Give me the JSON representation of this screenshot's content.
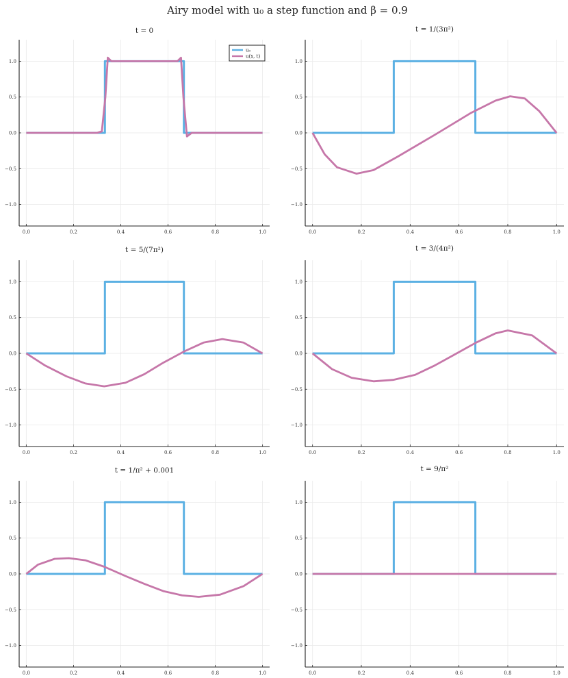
{
  "figure": {
    "title": "Airy model with u₀ a step function and β =  0.9"
  },
  "colors": {
    "u0": "#5bb0e3",
    "u": "#c677a9",
    "grid": "#e9e9e9",
    "axis": "#222222"
  },
  "legend": {
    "entries": [
      "u₀",
      "u(x, t)"
    ]
  },
  "chart_data": [
    {
      "type": "line",
      "title": "t = 0",
      "xticks": [
        0.0,
        0.2,
        0.4,
        0.6,
        0.8,
        1.0
      ],
      "yticks": [
        -1.0,
        -0.5,
        0.0,
        0.5,
        1.0
      ],
      "xtick_labels": [
        "0.0",
        "0.2",
        "0.4",
        "0.6",
        "0.8",
        "1.0"
      ],
      "ytick_labels": [
        "−1.0",
        "−0.5",
        "0.0",
        "0.5",
        "1.0"
      ],
      "xlim": [
        -0.03,
        1.03
      ],
      "ylim": [
        -1.3,
        1.3
      ],
      "grid": true,
      "legend": "top-right",
      "series": [
        {
          "name": "u₀",
          "x": [
            0,
            0.333,
            0.333,
            0.667,
            0.667,
            1.0
          ],
          "y": [
            0,
            0,
            1,
            1,
            0,
            0
          ]
        },
        {
          "name": "u(x, t)",
          "x": [
            0.0,
            0.3,
            0.32,
            0.335,
            0.345,
            0.36,
            0.5,
            0.64,
            0.655,
            0.665,
            0.68,
            0.7,
            1.0
          ],
          "y": [
            0.0,
            0.0,
            0.02,
            0.5,
            1.05,
            1.0,
            1.0,
            1.0,
            1.05,
            0.5,
            -0.05,
            0.0,
            0.0
          ]
        }
      ]
    },
    {
      "type": "line",
      "title": "t = 1/(3π²)",
      "xticks": [
        0.0,
        0.2,
        0.4,
        0.6,
        0.8,
        1.0
      ],
      "yticks": [
        -1.0,
        -0.5,
        0.0,
        0.5,
        1.0
      ],
      "xtick_labels": [
        "0.0",
        "0.2",
        "0.4",
        "0.6",
        "0.8",
        "1.0"
      ],
      "ytick_labels": [
        "−1.0",
        "−0.5",
        "0.0",
        "0.5",
        "1.0"
      ],
      "xlim": [
        -0.03,
        1.03
      ],
      "ylim": [
        -1.3,
        1.3
      ],
      "grid": true,
      "series": [
        {
          "name": "u₀",
          "x": [
            0,
            0.333,
            0.333,
            0.667,
            0.667,
            1.0
          ],
          "y": [
            0,
            0,
            1,
            1,
            0,
            0
          ]
        },
        {
          "name": "u(x, t)",
          "x": [
            0.0,
            0.05,
            0.1,
            0.18,
            0.25,
            0.35,
            0.5,
            0.65,
            0.75,
            0.81,
            0.87,
            0.93,
            1.0
          ],
          "y": [
            0.0,
            -0.3,
            -0.48,
            -0.57,
            -0.52,
            -0.33,
            -0.03,
            0.28,
            0.45,
            0.51,
            0.48,
            0.3,
            0.0
          ]
        }
      ]
    },
    {
      "type": "line",
      "title": "t = 5/(7π²)",
      "xticks": [
        0.0,
        0.2,
        0.4,
        0.6,
        0.8,
        1.0
      ],
      "yticks": [
        -1.0,
        -0.5,
        0.0,
        0.5,
        1.0
      ],
      "xtick_labels": [
        "0.0",
        "0.2",
        "0.4",
        "0.6",
        "0.8",
        "1.0"
      ],
      "ytick_labels": [
        "−1.0",
        "−0.5",
        "0.0",
        "0.5",
        "1.0"
      ],
      "xlim": [
        -0.03,
        1.03
      ],
      "ylim": [
        -1.3,
        1.3
      ],
      "grid": true,
      "series": [
        {
          "name": "u₀",
          "x": [
            0,
            0.333,
            0.333,
            0.667,
            0.667,
            1.0
          ],
          "y": [
            0,
            0,
            1,
            1,
            0,
            0
          ]
        },
        {
          "name": "u(x, t)",
          "x": [
            0.0,
            0.08,
            0.17,
            0.25,
            0.33,
            0.42,
            0.5,
            0.58,
            0.67,
            0.75,
            0.83,
            0.92,
            1.0
          ],
          "y": [
            0.0,
            -0.17,
            -0.32,
            -0.42,
            -0.46,
            -0.41,
            -0.29,
            -0.13,
            0.03,
            0.15,
            0.2,
            0.15,
            0.0
          ]
        }
      ]
    },
    {
      "type": "line",
      "title": "t = 3/(4π²)",
      "xticks": [
        0.0,
        0.2,
        0.4,
        0.6,
        0.8,
        1.0
      ],
      "yticks": [
        -1.0,
        -0.5,
        0.0,
        0.5,
        1.0
      ],
      "xtick_labels": [
        "0.0",
        "0.2",
        "0.4",
        "0.6",
        "0.8",
        "1.0"
      ],
      "ytick_labels": [
        "−1.0",
        "−0.5",
        "0.0",
        "0.5",
        "1.0"
      ],
      "xlim": [
        -0.03,
        1.03
      ],
      "ylim": [
        -1.3,
        1.3
      ],
      "grid": true,
      "series": [
        {
          "name": "u₀",
          "x": [
            0,
            0.333,
            0.333,
            0.667,
            0.667,
            1.0
          ],
          "y": [
            0,
            0,
            1,
            1,
            0,
            0
          ]
        },
        {
          "name": "u(x, t)",
          "x": [
            0.0,
            0.08,
            0.16,
            0.25,
            0.33,
            0.42,
            0.5,
            0.58,
            0.67,
            0.75,
            0.8,
            0.9,
            1.0
          ],
          "y": [
            0.0,
            -0.22,
            -0.34,
            -0.39,
            -0.37,
            -0.3,
            -0.17,
            -0.02,
            0.15,
            0.28,
            0.32,
            0.25,
            0.0
          ]
        }
      ]
    },
    {
      "type": "line",
      "title": "t = 1/π² + 0.001",
      "xticks": [
        0.0,
        0.2,
        0.4,
        0.6,
        0.8,
        1.0
      ],
      "yticks": [
        -1.0,
        -0.5,
        0.0,
        0.5,
        1.0
      ],
      "xtick_labels": [
        "0.0",
        "0.2",
        "0.4",
        "0.6",
        "0.8",
        "1.0"
      ],
      "ytick_labels": [
        "−1.0",
        "−0.5",
        "0.0",
        "0.5",
        "1.0"
      ],
      "xlim": [
        -0.03,
        1.03
      ],
      "ylim": [
        -1.3,
        1.3
      ],
      "grid": true,
      "series": [
        {
          "name": "u₀",
          "x": [
            0,
            0.333,
            0.333,
            0.667,
            0.667,
            1.0
          ],
          "y": [
            0,
            0,
            1,
            1,
            0,
            0
          ]
        },
        {
          "name": "u(x, t)",
          "x": [
            0.0,
            0.05,
            0.12,
            0.18,
            0.25,
            0.33,
            0.42,
            0.5,
            0.58,
            0.66,
            0.73,
            0.82,
            0.92,
            1.0
          ],
          "y": [
            0.0,
            0.13,
            0.21,
            0.22,
            0.19,
            0.1,
            -0.03,
            -0.14,
            -0.24,
            -0.3,
            -0.32,
            -0.29,
            -0.17,
            0.0
          ]
        }
      ]
    },
    {
      "type": "line",
      "title": "t = 9/π²",
      "xticks": [
        0.0,
        0.2,
        0.4,
        0.6,
        0.8,
        1.0
      ],
      "yticks": [
        -1.0,
        -0.5,
        0.0,
        0.5,
        1.0
      ],
      "xtick_labels": [
        "0.0",
        "0.2",
        "0.4",
        "0.6",
        "0.8",
        "1.0"
      ],
      "ytick_labels": [
        "−1.0",
        "−0.5",
        "0.0",
        "0.5",
        "1.0"
      ],
      "xlim": [
        -0.03,
        1.03
      ],
      "ylim": [
        -1.3,
        1.3
      ],
      "grid": true,
      "series": [
        {
          "name": "u₀",
          "x": [
            0,
            0.333,
            0.333,
            0.667,
            0.667,
            1.0
          ],
          "y": [
            0,
            0,
            1,
            1,
            0,
            0
          ]
        },
        {
          "name": "u(x, t)",
          "x": [
            0.0,
            1.0
          ],
          "y": [
            0.0,
            0.0
          ]
        }
      ]
    }
  ]
}
